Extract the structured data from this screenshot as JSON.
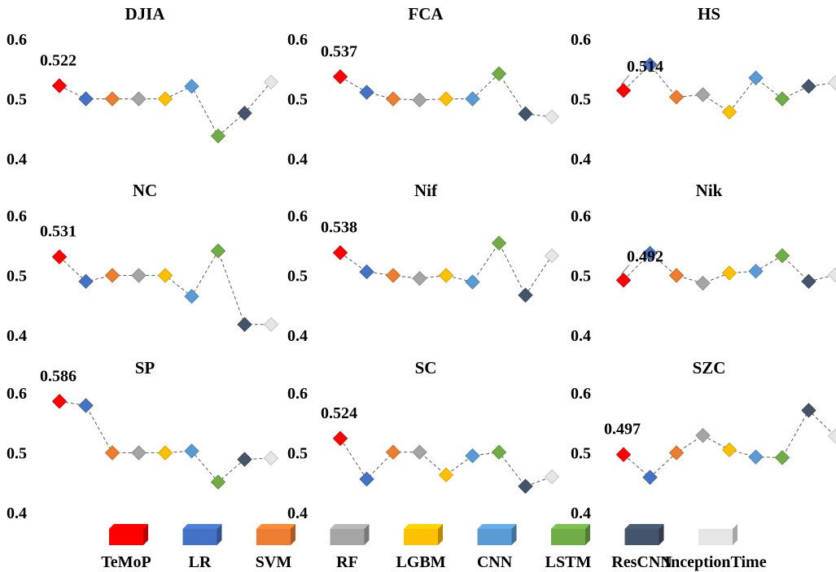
{
  "chart_data": {
    "type": "line",
    "marker": "diamond",
    "line_style": "dashed",
    "legend_position": "bottom",
    "grid": false,
    "categories": [
      "TeMoP",
      "LR",
      "SVM",
      "RF",
      "LGBM",
      "CNN",
      "LSTM",
      "ResCNN",
      "InceptionTime"
    ],
    "colors": [
      "#ff0000",
      "#4472c4",
      "#ed7d31",
      "#a5a5a5",
      "#ffc000",
      "#5b9bd5",
      "#70ad47",
      "#44546a",
      "#e7e6e6"
    ],
    "y_ticks": [
      "0.6",
      "0.5",
      "0.4"
    ],
    "ylim": [
      0.4,
      0.6
    ],
    "panels": [
      {
        "title": "DJIA",
        "values": [
          0.522,
          0.5,
          0.5,
          0.5,
          0.5,
          0.521,
          0.438,
          0.476,
          0.528
        ],
        "label": "0.522"
      },
      {
        "title": "FCA",
        "values": [
          0.537,
          0.511,
          0.5,
          0.498,
          0.5,
          0.5,
          0.542,
          0.475,
          0.47
        ],
        "label": "0.537"
      },
      {
        "title": "HS",
        "values": [
          0.514,
          0.557,
          0.503,
          0.507,
          0.478,
          0.535,
          0.5,
          0.521,
          0.527
        ],
        "label": "0.514"
      },
      {
        "title": "NC",
        "values": [
          0.531,
          0.49,
          0.5,
          0.5,
          0.5,
          0.465,
          0.541,
          0.418,
          0.418
        ],
        "label": "0.531"
      },
      {
        "title": "Nif",
        "values": [
          0.538,
          0.506,
          0.5,
          0.495,
          0.5,
          0.489,
          0.554,
          0.467,
          0.533
        ],
        "label": "0.538"
      },
      {
        "title": "Nik",
        "values": [
          0.492,
          0.537,
          0.5,
          0.487,
          0.504,
          0.507,
          0.533,
          0.49,
          0.501
        ],
        "label": "0.492"
      },
      {
        "title": "SP",
        "values": [
          0.586,
          0.579,
          0.5,
          0.5,
          0.5,
          0.503,
          0.451,
          0.489,
          0.491
        ],
        "label": "0.586"
      },
      {
        "title": "SC",
        "values": [
          0.524,
          0.456,
          0.501,
          0.501,
          0.463,
          0.495,
          0.501,
          0.444,
          0.46
        ],
        "label": "0.524"
      },
      {
        "title": "SZC",
        "values": [
          0.497,
          0.459,
          0.5,
          0.529,
          0.505,
          0.493,
          0.492,
          0.571,
          0.528
        ],
        "label": "0.497"
      }
    ]
  }
}
